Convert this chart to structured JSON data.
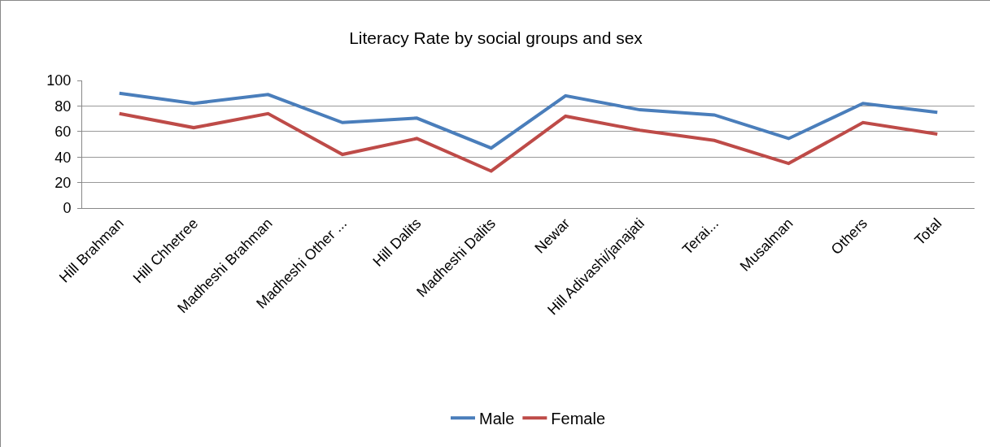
{
  "chart_data": {
    "type": "line",
    "title": "Literacy Rate by social groups and sex",
    "categories": [
      "Hill Brahman",
      "Hill Chhetree",
      "Madheshi Brahman",
      "Madheshi Other ...",
      "Hill Dalits",
      "Madheshi Dalits",
      "Newar",
      "Hill Adivashi/janajati",
      "Terai...",
      "Musalman",
      "Others",
      "Total"
    ],
    "series": [
      {
        "name": "Male",
        "color": "#4a7ebb",
        "values": [
          90,
          82,
          89,
          67,
          70.5,
          47,
          88,
          77,
          73,
          54.5,
          82,
          75
        ]
      },
      {
        "name": "Female",
        "color": "#be4b48",
        "values": [
          74,
          63,
          74,
          42,
          54.5,
          29,
          72,
          61,
          53,
          35,
          67,
          58
        ]
      }
    ],
    "ylim": [
      0,
      100
    ],
    "yticks": [
      0,
      20,
      40,
      60,
      80,
      100
    ],
    "grid": "y",
    "legend": "bottom",
    "marker": "none",
    "line_style": "solid"
  }
}
